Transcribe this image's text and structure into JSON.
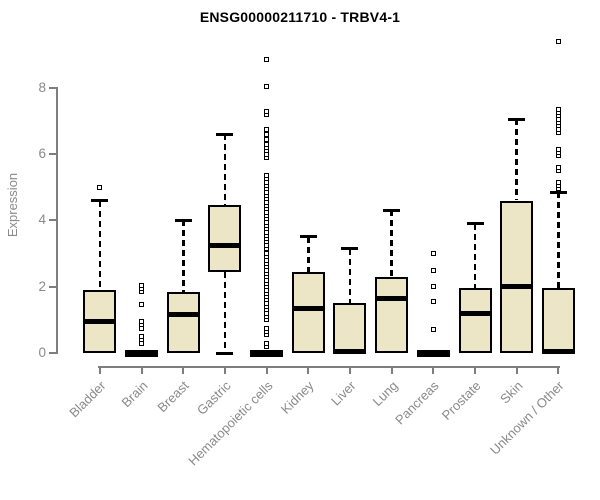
{
  "chart_data": {
    "type": "boxplot",
    "title": "ENSG00000211710 - TRBV4-1",
    "ylabel": "Expression",
    "xlabel": "",
    "y_ticks": [
      0,
      2,
      4,
      6,
      8
    ],
    "ylim": [
      0,
      9.6
    ],
    "grid": false,
    "legend": "none",
    "colors": {
      "box_fill": "#ece5c6",
      "box_border": "#000000",
      "median": "#000000",
      "axis": "#7d7d7d",
      "label_text": "#8a8a8a",
      "title_text": "#000000",
      "background": "#ffffff"
    },
    "categories": [
      "Bladder",
      "Brain",
      "Breast",
      "Gastric",
      "Hematopoietic cells",
      "Kidney",
      "Liver",
      "Lung",
      "Pancreas",
      "Prostate",
      "Skin",
      "Unknown / Other"
    ],
    "boxes": [
      {
        "category": "Bladder",
        "q1": 0,
        "median": 0.95,
        "q3": 1.9,
        "whisker_low": 0,
        "whisker_high": 4.6,
        "outliers": [
          5.0
        ]
      },
      {
        "category": "Brain",
        "q1": 0,
        "median": 0,
        "q3": 0,
        "whisker_low": 0,
        "whisker_high": 0,
        "outliers": [
          0.3,
          0.4,
          0.5,
          0.75,
          0.85,
          0.95,
          1.45,
          1.85,
          1.95,
          2.05
        ]
      },
      {
        "category": "Breast",
        "q1": 0,
        "median": 1.15,
        "q3": 1.85,
        "whisker_low": 0,
        "whisker_high": 4.0,
        "outliers": []
      },
      {
        "category": "Gastric",
        "q1": 2.45,
        "median": 3.25,
        "q3": 4.45,
        "whisker_low": 0,
        "whisker_high": 6.6,
        "outliers": []
      },
      {
        "category": "Hematopoietic cells",
        "q1": 0,
        "median": 0,
        "q3": 0,
        "whisker_low": 0,
        "whisker_high": 0,
        "outliers": [
          0.2,
          0.3,
          0.55,
          0.65,
          0.75,
          1.0,
          1.1,
          1.2,
          1.3,
          1.4,
          1.5,
          1.6,
          1.7,
          1.8,
          1.9,
          2.0,
          2.1,
          2.2,
          2.3,
          2.4,
          2.5,
          2.6,
          2.7,
          2.8,
          2.9,
          3.0,
          3.15,
          3.25,
          3.35,
          3.45,
          3.55,
          3.65,
          3.75,
          3.85,
          3.95,
          4.05,
          4.15,
          4.25,
          4.35,
          4.45,
          4.55,
          4.65,
          4.75,
          4.85,
          4.95,
          5.05,
          5.15,
          5.25,
          5.35,
          5.9,
          6.0,
          6.1,
          6.2,
          6.3,
          6.45,
          6.6,
          6.75,
          7.2,
          7.3,
          8.05,
          8.85
        ]
      },
      {
        "category": "Kidney",
        "q1": 0,
        "median": 1.35,
        "q3": 2.45,
        "whisker_low": 0,
        "whisker_high": 3.5,
        "outliers": []
      },
      {
        "category": "Liver",
        "q1": 0,
        "median": 0.05,
        "q3": 1.5,
        "whisker_low": 0,
        "whisker_high": 3.15,
        "outliers": []
      },
      {
        "category": "Lung",
        "q1": 0,
        "median": 1.65,
        "q3": 2.3,
        "whisker_low": 0,
        "whisker_high": 4.3,
        "outliers": []
      },
      {
        "category": "Pancreas",
        "q1": 0,
        "median": 0,
        "q3": 0,
        "whisker_low": 0,
        "whisker_high": 0,
        "outliers": [
          0.7,
          1.55,
          2.0,
          2.5,
          3.0
        ]
      },
      {
        "category": "Prostate",
        "q1": 0,
        "median": 1.2,
        "q3": 1.95,
        "whisker_low": 0,
        "whisker_high": 3.9,
        "outliers": []
      },
      {
        "category": "Skin",
        "q1": 0,
        "median": 2.0,
        "q3": 4.6,
        "whisker_low": 0,
        "whisker_high": 7.05,
        "outliers": []
      },
      {
        "category": "Unknown / Other",
        "q1": 0,
        "median": 0.05,
        "q3": 1.95,
        "whisker_low": 0,
        "whisker_high": 4.85,
        "outliers": [
          4.95,
          5.05,
          5.15,
          5.5,
          5.6,
          5.95,
          6.05,
          6.15,
          6.65,
          6.75,
          6.85,
          6.95,
          7.05,
          7.15,
          7.25,
          7.35,
          9.4
        ]
      }
    ]
  }
}
